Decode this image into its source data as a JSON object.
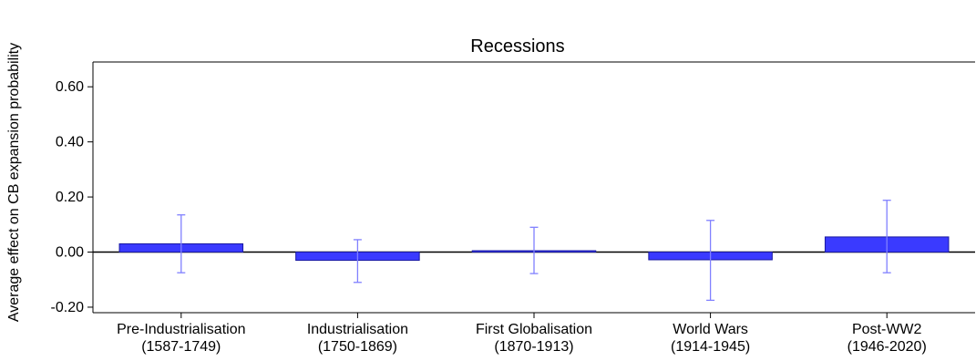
{
  "chart_data": {
    "type": "bar",
    "title": "Recessions",
    "ylabel": "Average effect on CB expansion probability",
    "xlabel": "",
    "ylim": [
      -0.22,
      0.69
    ],
    "yticks": [
      "0.60",
      "0.40",
      "0.20",
      "0.00",
      "-0.20"
    ],
    "categories": [
      {
        "line1": "Pre-Industrialisation",
        "line2": "(1587-1749)"
      },
      {
        "line1": "Industrialisation",
        "line2": "(1750-1869)"
      },
      {
        "line1": "First Globalisation",
        "line2": "(1870-1913)"
      },
      {
        "line1": "World Wars",
        "line2": "(1914-1945)"
      },
      {
        "line1": "Post-WW2",
        "line2": "(1946-2020)"
      }
    ],
    "values": [
      0.03,
      -0.03,
      0.005,
      -0.028,
      0.055
    ],
    "ci_low": [
      -0.075,
      -0.11,
      -0.078,
      -0.175,
      -0.075
    ],
    "ci_high": [
      0.135,
      0.045,
      0.09,
      0.115,
      0.188
    ],
    "colors": {
      "bar_fill": "#3a3aff",
      "bar_stroke": "#1a1aa0",
      "error_bar": "#8080ff",
      "axis": "#000000"
    },
    "grid": false,
    "legend": "none"
  }
}
